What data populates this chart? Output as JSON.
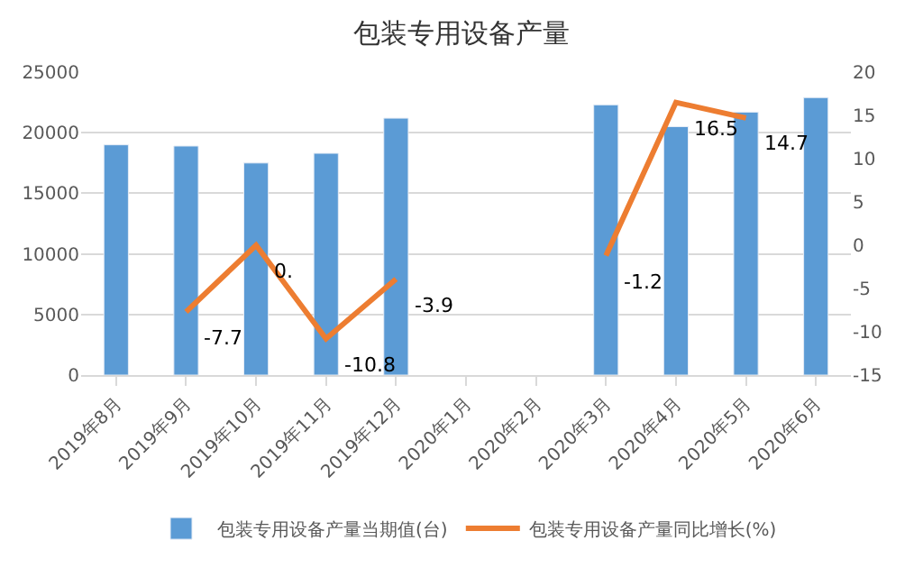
{
  "chart_data": {
    "type": "bar",
    "title": "包装专用设备产量",
    "categories": [
      "2019年8月",
      "2019年9月",
      "2019年10月",
      "2019年11月",
      "2019年12月",
      "2020年1月",
      "2020年2月",
      "2020年3月",
      "2020年4月",
      "2020年5月",
      "2020年6月"
    ],
    "series": [
      {
        "name": "包装专用设备产量当期值(台)",
        "color": "#5b9bd5",
        "values": [
          19000,
          18900,
          17500,
          18300,
          21200,
          null,
          null,
          22300,
          20500,
          21700,
          22900
        ]
      },
      {
        "name": "包装专用设备产量同比增长(%)",
        "type": "line",
        "axis": "y2",
        "color": "#ed7d31",
        "values": [
          null,
          -7.7,
          0,
          -10.8,
          -3.9,
          null,
          null,
          -1.2,
          16.5,
          14.7,
          null
        ],
        "value_labels": [
          null,
          "-7.7",
          "0.",
          "-10.8",
          "-3.9",
          null,
          null,
          "-1.2",
          "16.5",
          "14.7",
          null
        ]
      }
    ],
    "ylim": [
      0,
      25000
    ],
    "yticks": [
      0,
      5000,
      10000,
      15000,
      20000,
      25000
    ],
    "y2lim": [
      -15,
      20
    ],
    "y2ticks": [
      -15,
      -10,
      -5,
      0,
      5,
      10,
      15,
      20
    ],
    "grid": "y",
    "legend": "bottom",
    "marker": "none"
  }
}
